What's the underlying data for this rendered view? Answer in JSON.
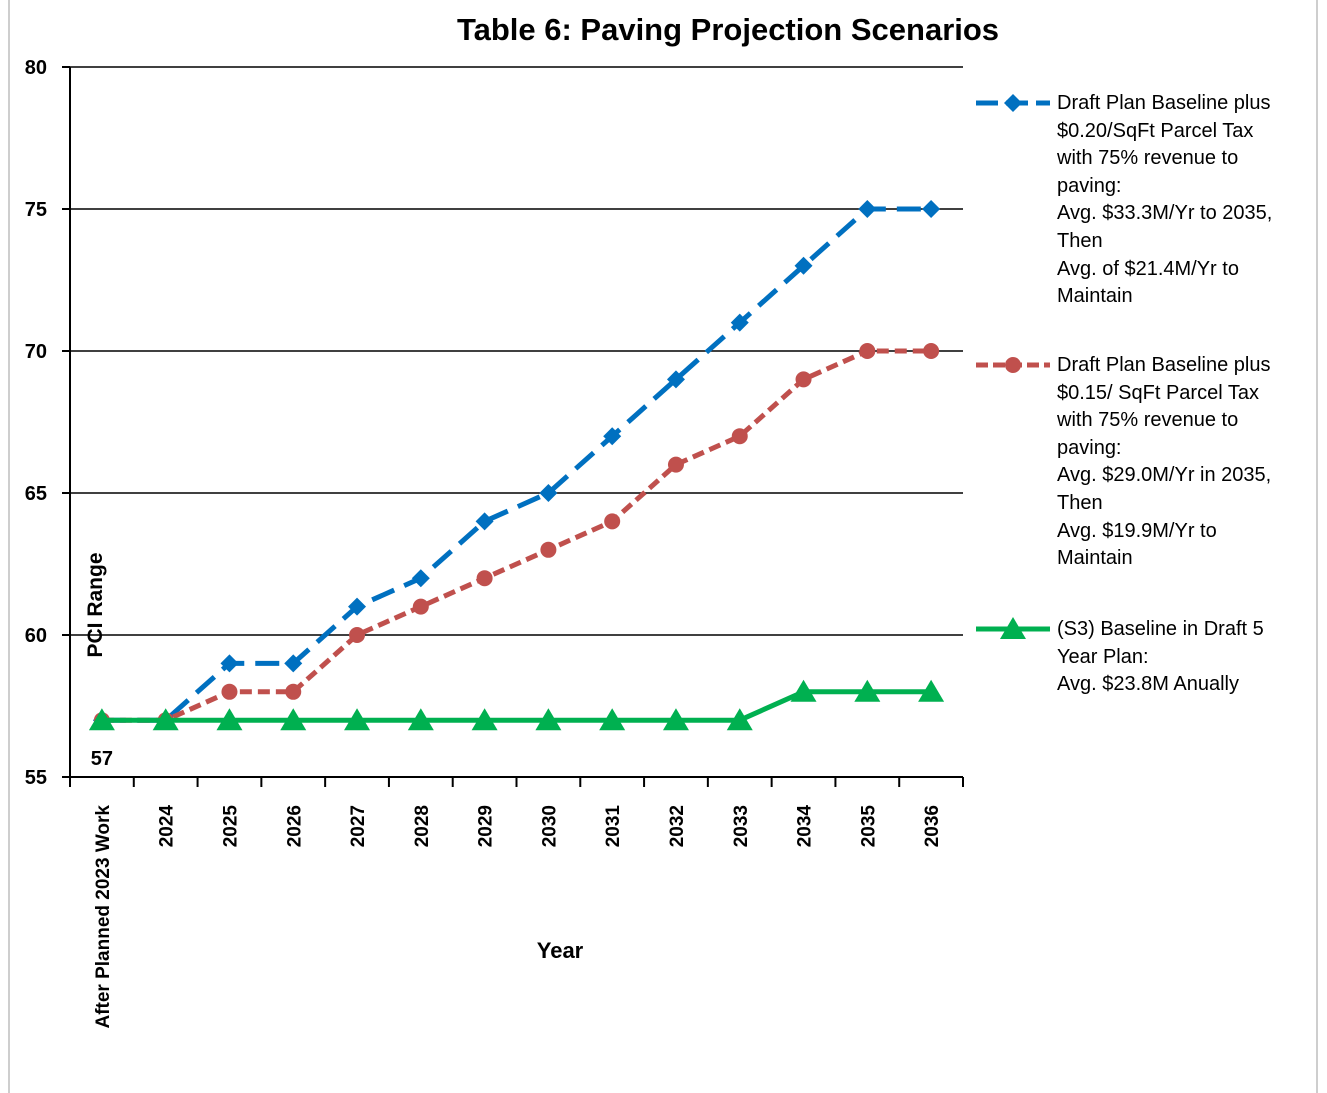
{
  "chart_data": {
    "type": "line",
    "title": "Table 6: Paving Projection Scenarios",
    "x_label": "Year",
    "y_label": "PCI Range",
    "categories": [
      "After Planned 2023 Work",
      "2024",
      "2025",
      "2026",
      "2027",
      "2028",
      "2029",
      "2030",
      "2031",
      "2032",
      "2033",
      "2034",
      "2035",
      "2036"
    ],
    "ylim": [
      55,
      80
    ],
    "yticks": [
      55,
      60,
      65,
      70,
      75,
      80
    ],
    "grid": true,
    "legend": "right",
    "series": [
      {
        "name": "Draft Plan Baseline plus\n$0.20/SqFt Parcel Tax\nwith 75% revenue to\npaving:\nAvg. $33.3M/Yr to 2035,\nThen\nAvg. of $21.4M/Yr to\nMaintain",
        "color": "#0070c0",
        "dash": "24 11",
        "marker": "diamond",
        "values": [
          57,
          57,
          59,
          59,
          61,
          62,
          64,
          65,
          67,
          69,
          71,
          73,
          75,
          75
        ]
      },
      {
        "name": "Draft Plan Baseline plus\n$0.15/ SqFt Parcel Tax\nwith 75% revenue to\npaving:\nAvg. $29.0M/Yr in 2035,\nThen\nAvg. $19.9M/Yr to\nMaintain",
        "color": "#c0504d",
        "dash": "12 6",
        "marker": "circle",
        "values": [
          57,
          57,
          58,
          58,
          60,
          61,
          62,
          63,
          64,
          66,
          67,
          69,
          70,
          70
        ]
      },
      {
        "name": "(S3) Baseline in Draft 5\nYear Plan:\nAvg. $23.8M Anually",
        "color": "#00b050",
        "dash": "none",
        "marker": "triangle",
        "values": [
          57,
          57,
          57,
          57,
          57,
          57,
          57,
          57,
          57,
          57,
          57,
          58,
          58,
          58
        ],
        "value_labels": [
          "57",
          null,
          null,
          null,
          null,
          null,
          null,
          null,
          null,
          null,
          null,
          null,
          null,
          null
        ]
      }
    ]
  }
}
